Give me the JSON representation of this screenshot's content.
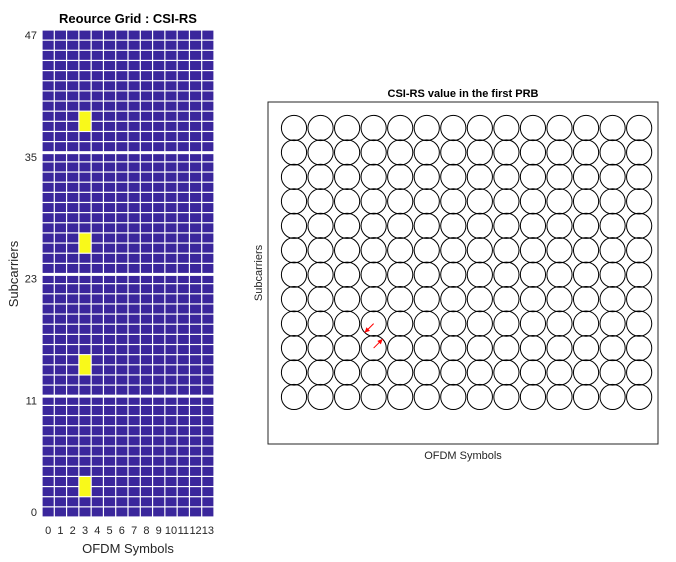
{
  "figure": {
    "background": "#ffffff"
  },
  "chart_data": [
    {
      "type": "heatmap",
      "title": "Reource Grid : CSI-RS",
      "xlabel": "OFDM Symbols",
      "ylabel": "Subcarriers",
      "x_ticks": [
        "0",
        "1",
        "2",
        "3",
        "4",
        "5",
        "6",
        "7",
        "8",
        "9",
        "10",
        "11",
        "12",
        "13"
      ],
      "y_ticks": [
        "0",
        "11",
        "23",
        "35",
        "47"
      ],
      "y_tick_values": [
        0,
        11,
        23,
        35,
        47
      ],
      "n_symbols": 14,
      "n_subcarriers": 48,
      "prb_size": 12,
      "colors": {
        "empty": "#3a269c",
        "csi_rs": "#f9f91a",
        "grid_line": "#ffffff"
      },
      "csi_rs_cells": [
        {
          "symbol": 3,
          "subcarriers": [
            2,
            3
          ]
        },
        {
          "symbol": 3,
          "subcarriers": [
            14,
            15
          ]
        },
        {
          "symbol": 3,
          "subcarriers": [
            26,
            27
          ]
        },
        {
          "symbol": 3,
          "subcarriers": [
            38,
            39
          ]
        }
      ]
    },
    {
      "type": "scatter",
      "title": "CSI-RS value in the first PRB",
      "xlabel": "OFDM Symbols",
      "ylabel": "Subcarriers",
      "n_symbols": 14,
      "n_subcarriers": 12,
      "colors": {
        "circle": "#000000",
        "arrow": "#ff0000"
      },
      "arrows": [
        {
          "symbol": 3,
          "subcarrier": 3,
          "direction": "down-left"
        },
        {
          "symbol": 3,
          "subcarrier": 2,
          "direction": "up-right"
        }
      ]
    }
  ]
}
